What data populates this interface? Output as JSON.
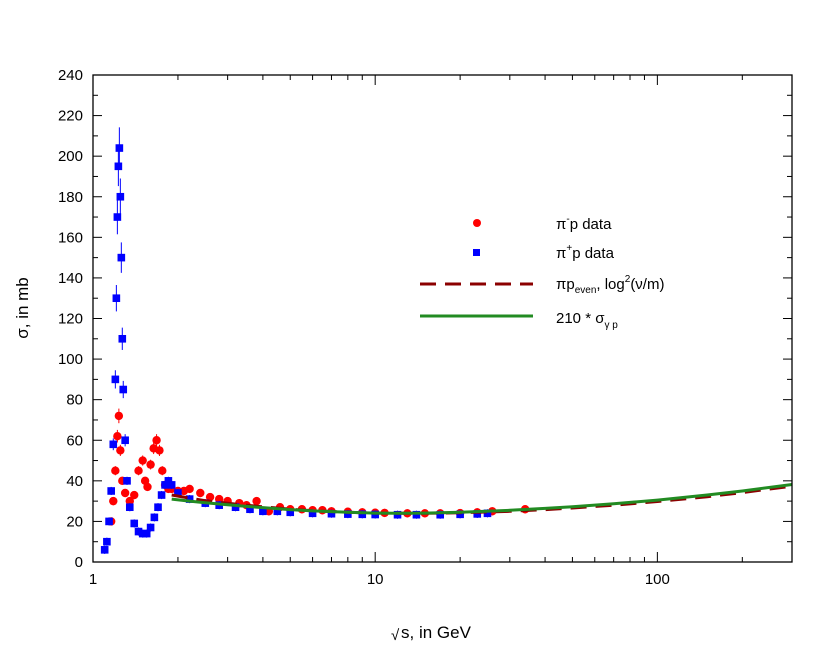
{
  "chart_data": {
    "type": "scatter",
    "title": "",
    "xlabel": "s, in GeV",
    "xlabel_root": "√",
    "ylabel": "σ, in mb",
    "x_scale": "log",
    "xlim": [
      1,
      300
    ],
    "ylim": [
      0,
      240
    ],
    "x_ticks": [
      1,
      10,
      100
    ],
    "x_tick_labels": [
      "1",
      "10",
      "100"
    ],
    "y_ticks": [
      0,
      20,
      40,
      60,
      80,
      100,
      120,
      140,
      160,
      180,
      200,
      220,
      240
    ],
    "y_tick_labels": [
      "0",
      "20",
      "40",
      "60",
      "80",
      "100",
      "120",
      "140",
      "160",
      "180",
      "200",
      "220",
      "240"
    ],
    "grid": false,
    "legend_position": "right",
    "legend": {
      "pim_base": "π",
      "pim_sup": "-",
      "pim_rest": "p data",
      "pip_base": "π",
      "pip_sup": "+",
      "pip_rest": "p data",
      "even_pi": "πp",
      "even_sub": "even",
      "even_mid": ", log",
      "even_sup": "2",
      "even_end": "(ν/m)",
      "gamma_a": "210 *  σ",
      "gamma_sub": "γ p"
    },
    "series": [
      {
        "name": "π⁻p data",
        "marker": "circle",
        "color": "#ff0000",
        "points": [
          [
            1.16,
            20
          ],
          [
            1.18,
            30
          ],
          [
            1.2,
            45
          ],
          [
            1.22,
            62
          ],
          [
            1.235,
            72
          ],
          [
            1.25,
            55
          ],
          [
            1.27,
            40
          ],
          [
            1.3,
            34
          ],
          [
            1.35,
            30
          ],
          [
            1.4,
            33
          ],
          [
            1.45,
            45
          ],
          [
            1.5,
            50
          ],
          [
            1.53,
            40
          ],
          [
            1.56,
            37
          ],
          [
            1.6,
            48
          ],
          [
            1.64,
            56
          ],
          [
            1.68,
            60
          ],
          [
            1.72,
            55
          ],
          [
            1.76,
            45
          ],
          [
            1.8,
            38
          ],
          [
            1.85,
            36
          ],
          [
            1.9,
            36
          ],
          [
            2.0,
            35
          ],
          [
            2.1,
            35
          ],
          [
            2.2,
            36
          ],
          [
            2.4,
            34
          ],
          [
            2.6,
            32
          ],
          [
            2.8,
            31
          ],
          [
            3.0,
            30
          ],
          [
            3.3,
            29
          ],
          [
            3.5,
            28
          ],
          [
            3.8,
            30
          ],
          [
            4.2,
            25
          ],
          [
            4.6,
            27
          ],
          [
            5.0,
            26
          ],
          [
            5.5,
            26
          ],
          [
            6.0,
            25.5
          ],
          [
            6.5,
            25.5
          ],
          [
            7.0,
            25
          ],
          [
            8.0,
            24.8
          ],
          [
            9.0,
            24.5
          ],
          [
            10.0,
            24.3
          ],
          [
            10.8,
            24.2
          ],
          [
            13.0,
            24
          ],
          [
            15.0,
            24
          ],
          [
            17.0,
            24
          ],
          [
            20.0,
            24.1
          ],
          [
            23.0,
            24.5
          ],
          [
            26.0,
            25
          ],
          [
            34.0,
            26
          ]
        ]
      },
      {
        "name": "π⁺p data",
        "marker": "square",
        "color": "#0000ff",
        "points": [
          [
            1.1,
            6
          ],
          [
            1.12,
            10
          ],
          [
            1.14,
            20
          ],
          [
            1.16,
            35
          ],
          [
            1.18,
            58
          ],
          [
            1.2,
            90
          ],
          [
            1.21,
            130
          ],
          [
            1.22,
            170
          ],
          [
            1.23,
            195
          ],
          [
            1.24,
            204
          ],
          [
            1.25,
            180
          ],
          [
            1.26,
            150
          ],
          [
            1.27,
            110
          ],
          [
            1.28,
            85
          ],
          [
            1.3,
            60
          ],
          [
            1.32,
            40
          ],
          [
            1.35,
            27
          ],
          [
            1.4,
            19
          ],
          [
            1.45,
            15
          ],
          [
            1.5,
            14
          ],
          [
            1.55,
            14
          ],
          [
            1.6,
            17
          ],
          [
            1.65,
            22
          ],
          [
            1.7,
            27
          ],
          [
            1.75,
            33
          ],
          [
            1.8,
            38
          ],
          [
            1.85,
            40
          ],
          [
            1.9,
            38
          ],
          [
            2.0,
            34
          ],
          [
            2.2,
            31
          ],
          [
            2.5,
            29
          ],
          [
            2.8,
            28
          ],
          [
            3.2,
            27
          ],
          [
            3.6,
            26
          ],
          [
            4.0,
            25
          ],
          [
            4.5,
            25
          ],
          [
            5.0,
            24.5
          ],
          [
            6.0,
            24
          ],
          [
            7.0,
            23.8
          ],
          [
            8.0,
            23.6
          ],
          [
            9.0,
            23.5
          ],
          [
            10.0,
            23.4
          ],
          [
            12.0,
            23.3
          ],
          [
            14.0,
            23.3
          ],
          [
            17.0,
            23.3
          ],
          [
            20.0,
            23.5
          ],
          [
            23.0,
            23.7
          ],
          [
            25.0,
            24
          ]
        ]
      },
      {
        "name": "πp even, log²(ν/m)",
        "style": "dashed",
        "color": "#8b0000",
        "points": [
          [
            1.9,
            33
          ],
          [
            2.2,
            31.5
          ],
          [
            2.5,
            30.2
          ],
          [
            3.0,
            29
          ],
          [
            3.5,
            28
          ],
          [
            4.0,
            27.2
          ],
          [
            5.0,
            26
          ],
          [
            6.0,
            25.3
          ],
          [
            8.0,
            24.5
          ],
          [
            10.0,
            24.1
          ],
          [
            12.0,
            24
          ],
          [
            15.0,
            24
          ],
          [
            20.0,
            24.3
          ],
          [
            30.0,
            25
          ],
          [
            40.0,
            25.8
          ],
          [
            50.0,
            26.6
          ],
          [
            70.0,
            28
          ],
          [
            100.0,
            29.8
          ],
          [
            150.0,
            32.2
          ],
          [
            200.0,
            34.2
          ],
          [
            300.0,
            37.4
          ]
        ]
      },
      {
        "name": "210 * σγp",
        "style": "solid",
        "color": "#228b22",
        "points": [
          [
            1.9,
            31
          ],
          [
            2.2,
            30
          ],
          [
            2.5,
            29.2
          ],
          [
            3.0,
            28.2
          ],
          [
            3.5,
            27.4
          ],
          [
            4.0,
            26.8
          ],
          [
            5.0,
            25.8
          ],
          [
            6.0,
            25.2
          ],
          [
            8.0,
            24.5
          ],
          [
            10.0,
            24.1
          ],
          [
            12.0,
            24
          ],
          [
            15.0,
            24.1
          ],
          [
            20.0,
            24.5
          ],
          [
            30.0,
            25.5
          ],
          [
            40.0,
            26.4
          ],
          [
            50.0,
            27.2
          ],
          [
            70.0,
            28.7
          ],
          [
            100.0,
            30.5
          ],
          [
            150.0,
            33
          ],
          [
            200.0,
            35
          ],
          [
            300.0,
            38.2
          ]
        ]
      }
    ]
  }
}
